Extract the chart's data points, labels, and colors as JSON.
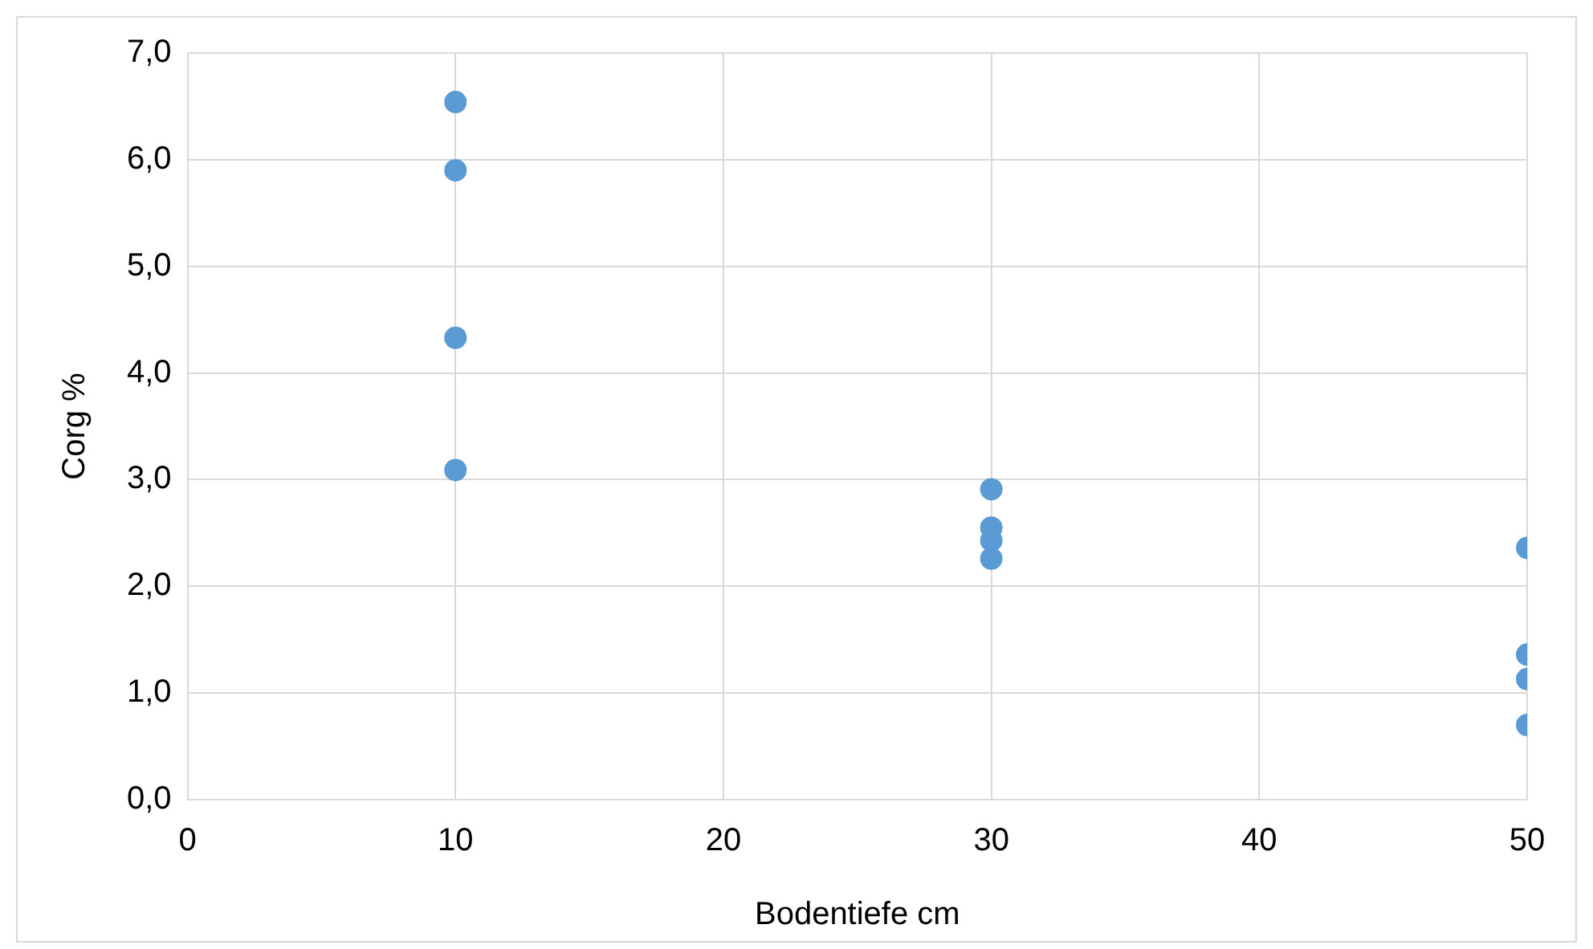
{
  "chart_data": {
    "type": "scatter",
    "xlabel": "Bodentiefe cm",
    "ylabel": "Corg %",
    "x": [
      10,
      10,
      10,
      10,
      30,
      30,
      30,
      30,
      50,
      50,
      50,
      50
    ],
    "values": [
      6.54,
      5.9,
      4.33,
      3.09,
      2.91,
      2.55,
      2.43,
      2.26,
      2.36,
      1.36,
      1.13,
      0.7
    ],
    "color": "#5b9bd5",
    "marker": "circle",
    "xlim": [
      0,
      50
    ],
    "xticks": [
      0,
      10,
      20,
      30,
      40,
      50
    ],
    "ylim": [
      0,
      7
    ],
    "yticks": [
      {
        "value": 0,
        "label": "0,0"
      },
      {
        "value": 1,
        "label": "1,0"
      },
      {
        "value": 2,
        "label": "2,0"
      },
      {
        "value": 3,
        "label": "3,0"
      },
      {
        "value": 4,
        "label": "4,0"
      },
      {
        "value": 5,
        "label": "5,0"
      },
      {
        "value": 6,
        "label": "6,0"
      },
      {
        "value": 7,
        "label": "7,0"
      }
    ],
    "grid": true,
    "legend": false
  }
}
